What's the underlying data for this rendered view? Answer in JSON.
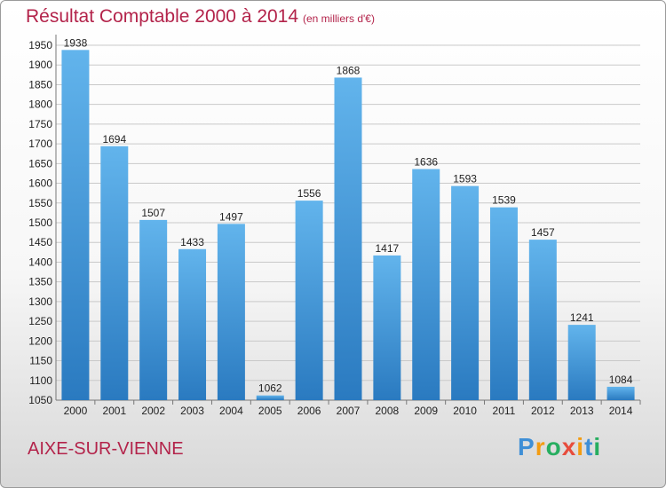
{
  "chart_data": {
    "type": "bar",
    "title": "Résultat Comptable 2000 à 2014",
    "subtitle": "(en milliers d'€)",
    "categories": [
      "2000",
      "2001",
      "2002",
      "2003",
      "2004",
      "2005",
      "2006",
      "2007",
      "2008",
      "2009",
      "2010",
      "2011",
      "2012",
      "2013",
      "2014"
    ],
    "values": [
      1938,
      1694,
      1507,
      1433,
      1497,
      1062,
      1556,
      1868,
      1417,
      1636,
      1593,
      1539,
      1457,
      1241,
      1084
    ],
    "ylim": [
      1050,
      1950
    ],
    "yticks": [
      1050,
      1100,
      1150,
      1200,
      1250,
      1300,
      1350,
      1400,
      1450,
      1500,
      1550,
      1600,
      1650,
      1700,
      1750,
      1800,
      1850,
      1900,
      1950
    ],
    "grid": true,
    "legend": "none",
    "bar_color_light": "#62b4ec",
    "bar_color_dark": "#2a7ac0"
  },
  "footer": {
    "place": "AIXE-SUR-VIENNE"
  },
  "logo": {
    "letters": [
      "P",
      "r",
      "o",
      "x",
      "i",
      "t",
      "i"
    ],
    "colors": [
      "#3f8fd6",
      "#f39c12",
      "#27ae60",
      "#e74c3c",
      "#f39c12",
      "#3f8fd6",
      "#27ae60"
    ]
  }
}
